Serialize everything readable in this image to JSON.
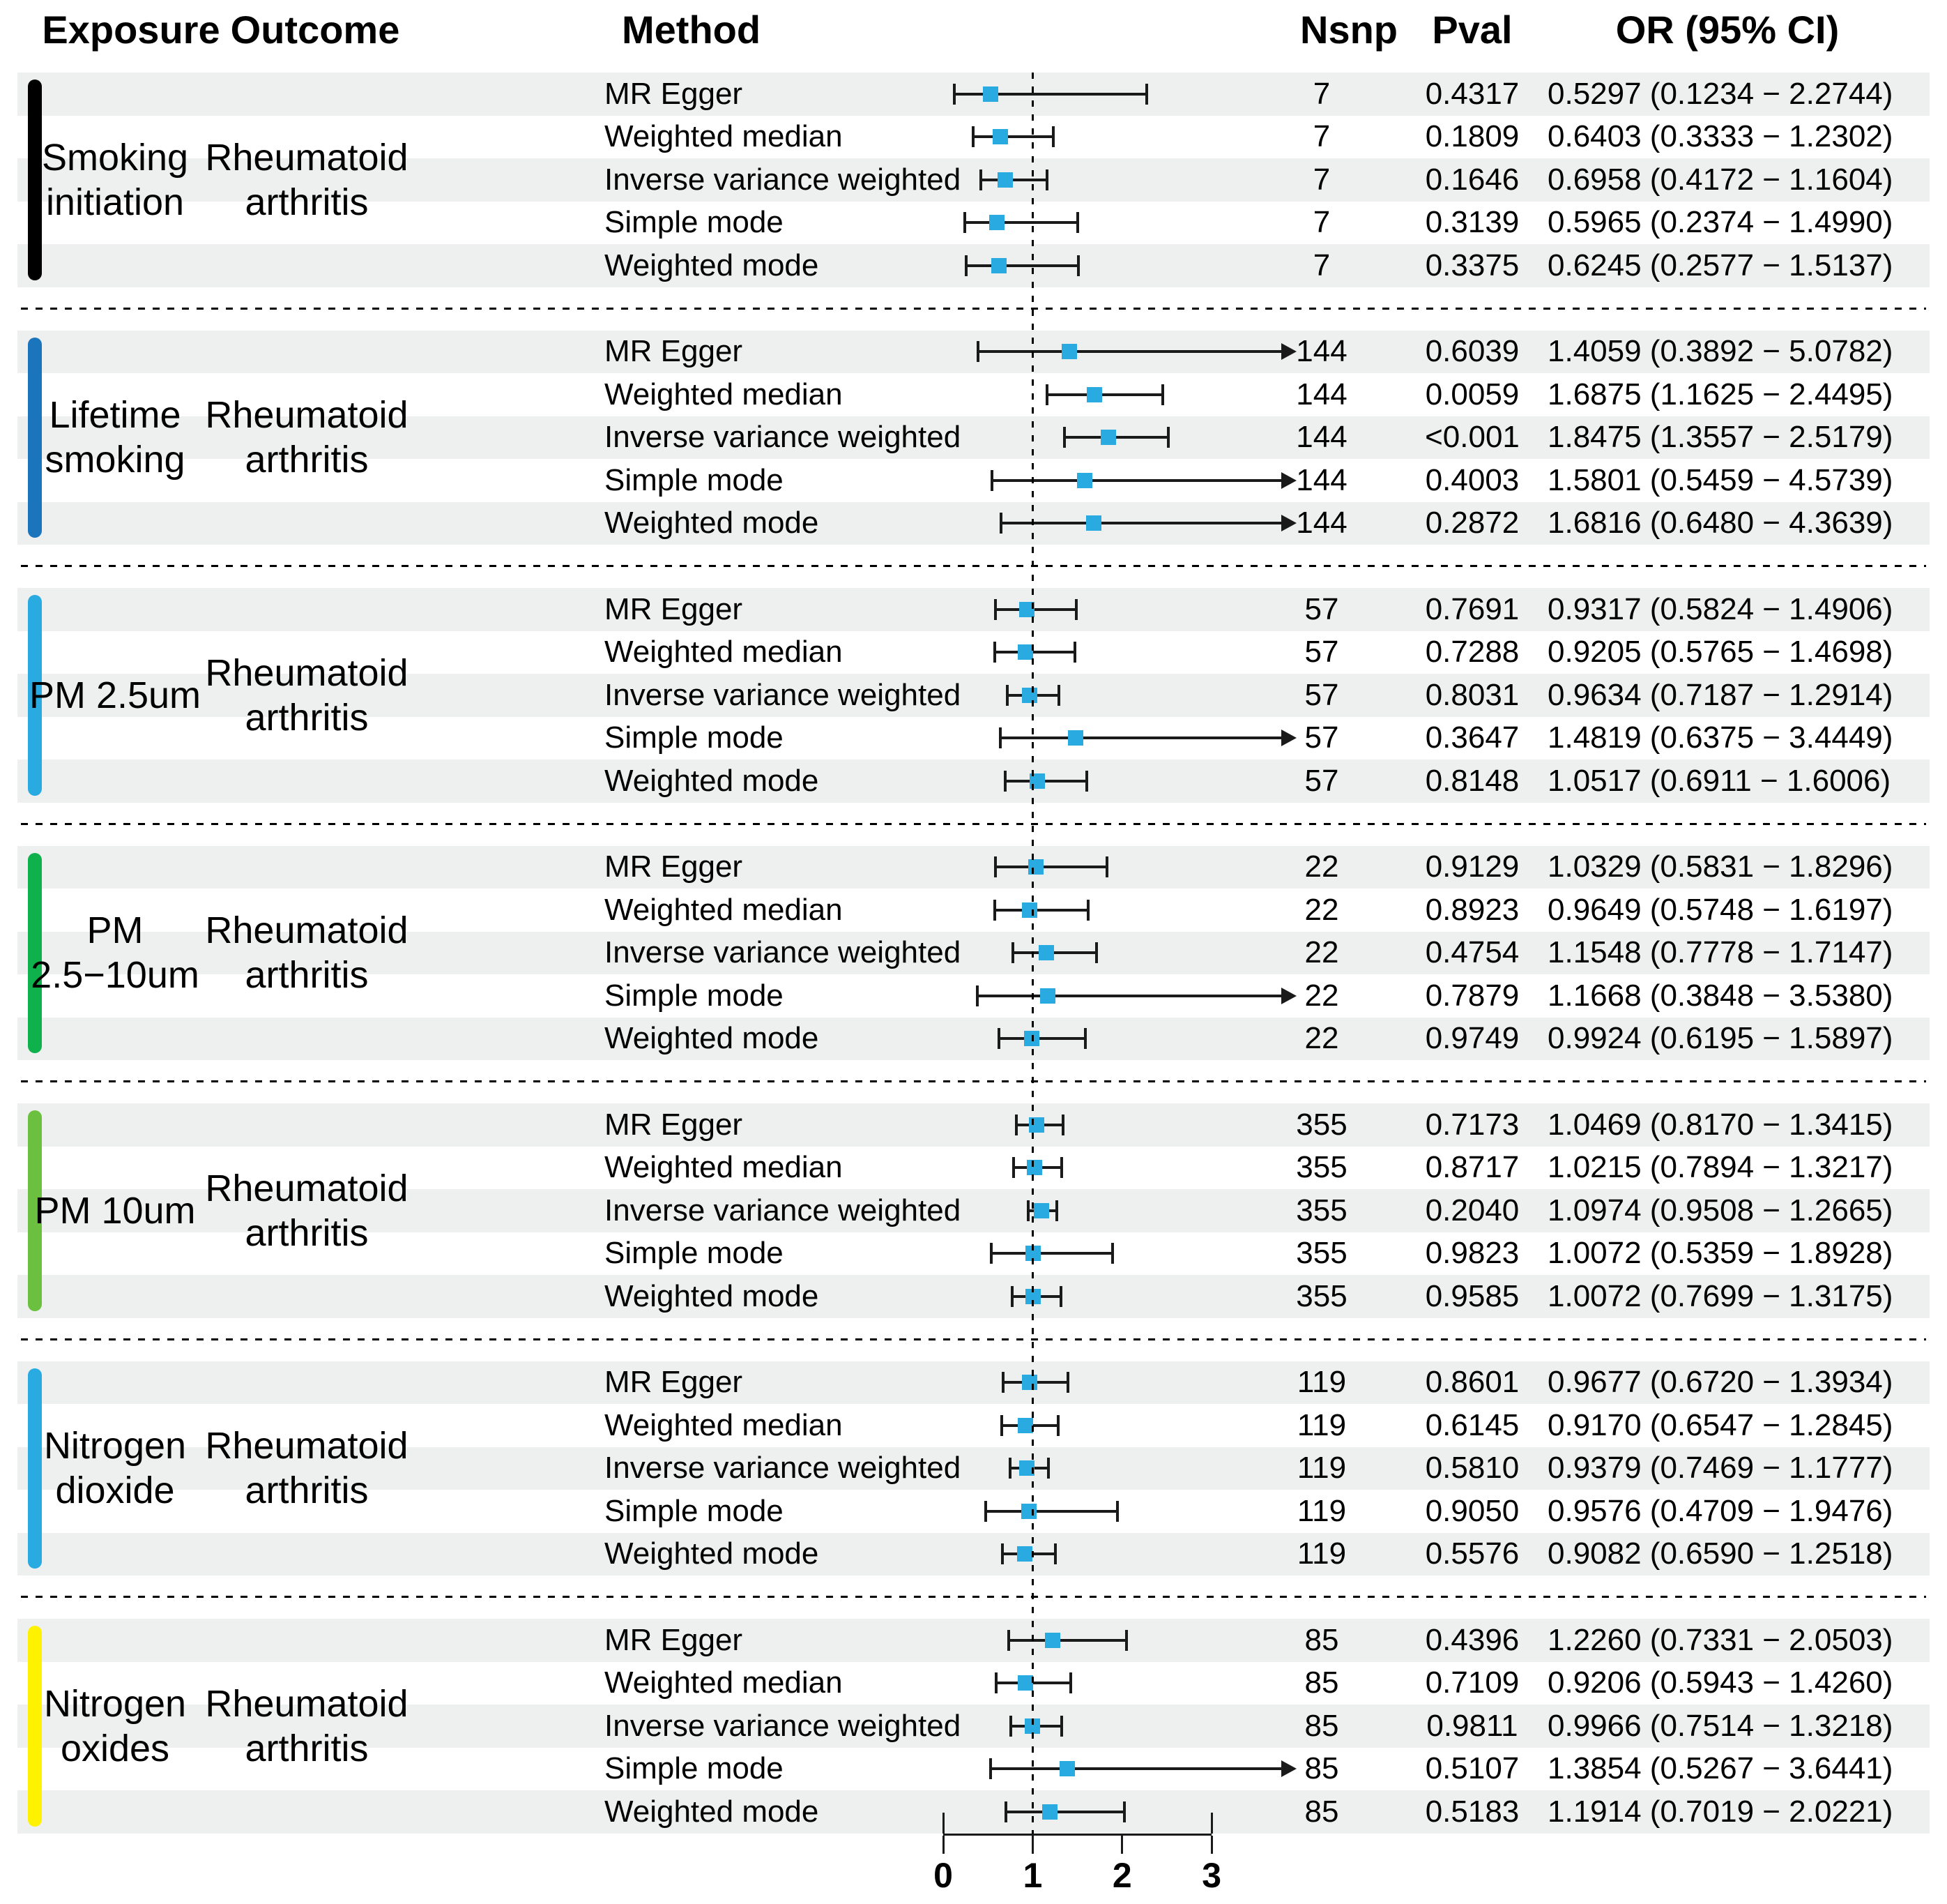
{
  "chart_data": {
    "type": "forest",
    "columns": {
      "exposure": "Exposure",
      "outcome": "Outcome",
      "method": "Method",
      "nsnp": "Nsnp",
      "pval": "Pval",
      "or_ci": "OR (95% CI)"
    },
    "x_axis": {
      "ticks": [
        "0",
        "1",
        "2",
        "3"
      ],
      "min": 0,
      "max": 3,
      "reference": 1
    },
    "colors": {
      "marker": "#29abe2",
      "band": "#eef0ef",
      "line": "#1a1a1a"
    },
    "groups": [
      {
        "exposure_lines": [
          "Smoking",
          "initiation"
        ],
        "outcome_lines": [
          "Rheumatoid",
          "arthritis"
        ],
        "bar_color": "#000000",
        "rows": [
          {
            "method": "MR Egger",
            "nsnp": "7",
            "pval": "0.4317",
            "or": 0.5297,
            "ci_low": 0.1234,
            "ci_high": 2.2744,
            "or_text": "0.5297 (0.1234 − 2.2744)",
            "clipped": false
          },
          {
            "method": "Weighted median",
            "nsnp": "7",
            "pval": "0.1809",
            "or": 0.6403,
            "ci_low": 0.3333,
            "ci_high": 1.2302,
            "or_text": "0.6403 (0.3333 − 1.2302)",
            "clipped": false
          },
          {
            "method": "Inverse variance weighted",
            "nsnp": "7",
            "pval": "0.1646",
            "or": 0.6958,
            "ci_low": 0.4172,
            "ci_high": 1.1604,
            "or_text": "0.6958 (0.4172 − 1.1604)",
            "clipped": false
          },
          {
            "method": "Simple mode",
            "nsnp": "7",
            "pval": "0.3139",
            "or": 0.5965,
            "ci_low": 0.2374,
            "ci_high": 1.499,
            "or_text": "0.5965 (0.2374 − 1.4990)",
            "clipped": false
          },
          {
            "method": "Weighted mode",
            "nsnp": "7",
            "pval": "0.3375",
            "or": 0.6245,
            "ci_low": 0.2577,
            "ci_high": 1.5137,
            "or_text": "0.6245 (0.2577 − 1.5137)",
            "clipped": false
          }
        ]
      },
      {
        "exposure_lines": [
          "Lifetime",
          "smoking"
        ],
        "outcome_lines": [
          "Rheumatoid",
          "arthritis"
        ],
        "bar_color": "#1b75bc",
        "rows": [
          {
            "method": "MR Egger",
            "nsnp": "144",
            "pval": "0.6039",
            "or": 1.4059,
            "ci_low": 0.3892,
            "ci_high": 5.0782,
            "or_text": "1.4059 (0.3892 − 5.0782)",
            "clipped": true
          },
          {
            "method": "Weighted median",
            "nsnp": "144",
            "pval": "0.0059",
            "or": 1.6875,
            "ci_low": 1.1625,
            "ci_high": 2.4495,
            "or_text": "1.6875 (1.1625 − 2.4495)",
            "clipped": false
          },
          {
            "method": "Inverse variance weighted",
            "nsnp": "144",
            "pval": "<0.001",
            "or": 1.8475,
            "ci_low": 1.3557,
            "ci_high": 2.5179,
            "or_text": "1.8475 (1.3557 − 2.5179)",
            "clipped": false
          },
          {
            "method": "Simple mode",
            "nsnp": "144",
            "pval": "0.4003",
            "or": 1.5801,
            "ci_low": 0.5459,
            "ci_high": 4.5739,
            "or_text": "1.5801 (0.5459 − 4.5739)",
            "clipped": true
          },
          {
            "method": "Weighted mode",
            "nsnp": "144",
            "pval": "0.2872",
            "or": 1.6816,
            "ci_low": 0.648,
            "ci_high": 4.3639,
            "or_text": "1.6816 (0.6480 − 4.3639)",
            "clipped": true
          }
        ]
      },
      {
        "exposure_lines": [
          "PM 2.5um"
        ],
        "outcome_lines": [
          "Rheumatoid",
          "arthritis"
        ],
        "bar_color": "#29abe2",
        "rows": [
          {
            "method": "MR Egger",
            "nsnp": "57",
            "pval": "0.7691",
            "or": 0.9317,
            "ci_low": 0.5824,
            "ci_high": 1.4906,
            "or_text": "0.9317 (0.5824 − 1.4906)",
            "clipped": false
          },
          {
            "method": "Weighted median",
            "nsnp": "57",
            "pval": "0.7288",
            "or": 0.9205,
            "ci_low": 0.5765,
            "ci_high": 1.4698,
            "or_text": "0.9205 (0.5765 − 1.4698)",
            "clipped": false
          },
          {
            "method": "Inverse variance weighted",
            "nsnp": "57",
            "pval": "0.8031",
            "or": 0.9634,
            "ci_low": 0.7187,
            "ci_high": 1.2914,
            "or_text": "0.9634 (0.7187 − 1.2914)",
            "clipped": false
          },
          {
            "method": "Simple mode",
            "nsnp": "57",
            "pval": "0.3647",
            "or": 1.4819,
            "ci_low": 0.6375,
            "ci_high": 3.4449,
            "or_text": "1.4819 (0.6375 − 3.4449)",
            "clipped": true
          },
          {
            "method": "Weighted mode",
            "nsnp": "57",
            "pval": "0.8148",
            "or": 1.0517,
            "ci_low": 0.6911,
            "ci_high": 1.6006,
            "or_text": "1.0517 (0.6911 − 1.6006)",
            "clipped": false
          }
        ]
      },
      {
        "exposure_lines": [
          "PM",
          "2.5−10um"
        ],
        "outcome_lines": [
          "Rheumatoid",
          "arthritis"
        ],
        "bar_color": "#0fb14c",
        "rows": [
          {
            "method": "MR Egger",
            "nsnp": "22",
            "pval": "0.9129",
            "or": 1.0329,
            "ci_low": 0.5831,
            "ci_high": 1.8296,
            "or_text": "1.0329 (0.5831 − 1.8296)",
            "clipped": false
          },
          {
            "method": "Weighted median",
            "nsnp": "22",
            "pval": "0.8923",
            "or": 0.9649,
            "ci_low": 0.5748,
            "ci_high": 1.6197,
            "or_text": "0.9649 (0.5748 − 1.6197)",
            "clipped": false
          },
          {
            "method": "Inverse variance weighted",
            "nsnp": "22",
            "pval": "0.4754",
            "or": 1.1548,
            "ci_low": 0.7778,
            "ci_high": 1.7147,
            "or_text": "1.1548 (0.7778 − 1.7147)",
            "clipped": false
          },
          {
            "method": "Simple mode",
            "nsnp": "22",
            "pval": "0.7879",
            "or": 1.1668,
            "ci_low": 0.3848,
            "ci_high": 3.538,
            "or_text": "1.1668 (0.3848 − 3.5380)",
            "clipped": true
          },
          {
            "method": "Weighted mode",
            "nsnp": "22",
            "pval": "0.9749",
            "or": 0.9924,
            "ci_low": 0.6195,
            "ci_high": 1.5897,
            "or_text": "0.9924 (0.6195 − 1.5897)",
            "clipped": false
          }
        ]
      },
      {
        "exposure_lines": [
          "PM 10um"
        ],
        "outcome_lines": [
          "Rheumatoid",
          "arthritis"
        ],
        "bar_color": "#6cc040",
        "rows": [
          {
            "method": "MR Egger",
            "nsnp": "355",
            "pval": "0.7173",
            "or": 1.0469,
            "ci_low": 0.817,
            "ci_high": 1.3415,
            "or_text": "1.0469 (0.8170 − 1.3415)",
            "clipped": false
          },
          {
            "method": "Weighted median",
            "nsnp": "355",
            "pval": "0.8717",
            "or": 1.0215,
            "ci_low": 0.7894,
            "ci_high": 1.3217,
            "or_text": "1.0215 (0.7894 − 1.3217)",
            "clipped": false
          },
          {
            "method": "Inverse variance weighted",
            "nsnp": "355",
            "pval": "0.2040",
            "or": 1.0974,
            "ci_low": 0.9508,
            "ci_high": 1.2665,
            "or_text": "1.0974 (0.9508 − 1.2665)",
            "clipped": false
          },
          {
            "method": "Simple mode",
            "nsnp": "355",
            "pval": "0.9823",
            "or": 1.0072,
            "ci_low": 0.5359,
            "ci_high": 1.8928,
            "or_text": "1.0072 (0.5359 − 1.8928)",
            "clipped": false
          },
          {
            "method": "Weighted mode",
            "nsnp": "355",
            "pval": "0.9585",
            "or": 1.0072,
            "ci_low": 0.7699,
            "ci_high": 1.3175,
            "or_text": "1.0072 (0.7699 − 1.3175)",
            "clipped": false
          }
        ]
      },
      {
        "exposure_lines": [
          "Nitrogen",
          "dioxide"
        ],
        "outcome_lines": [
          "Rheumatoid",
          "arthritis"
        ],
        "bar_color": "#29abe2",
        "rows": [
          {
            "method": "MR Egger",
            "nsnp": "119",
            "pval": "0.8601",
            "or": 0.9677,
            "ci_low": 0.672,
            "ci_high": 1.3934,
            "or_text": "0.9677 (0.6720 − 1.3934)",
            "clipped": false
          },
          {
            "method": "Weighted median",
            "nsnp": "119",
            "pval": "0.6145",
            "or": 0.917,
            "ci_low": 0.6547,
            "ci_high": 1.2845,
            "or_text": "0.9170 (0.6547 − 1.2845)",
            "clipped": false
          },
          {
            "method": "Inverse variance weighted",
            "nsnp": "119",
            "pval": "0.5810",
            "or": 0.9379,
            "ci_low": 0.7469,
            "ci_high": 1.1777,
            "or_text": "0.9379 (0.7469 − 1.1777)",
            "clipped": false
          },
          {
            "method": "Simple mode",
            "nsnp": "119",
            "pval": "0.9050",
            "or": 0.9576,
            "ci_low": 0.4709,
            "ci_high": 1.9476,
            "or_text": "0.9576 (0.4709 − 1.9476)",
            "clipped": false
          },
          {
            "method": "Weighted mode",
            "nsnp": "119",
            "pval": "0.5576",
            "or": 0.9082,
            "ci_low": 0.659,
            "ci_high": 1.2518,
            "or_text": "0.9082 (0.6590 − 1.2518)",
            "clipped": false
          }
        ]
      },
      {
        "exposure_lines": [
          "Nitrogen",
          "oxides"
        ],
        "outcome_lines": [
          "Rheumatoid",
          "arthritis"
        ],
        "bar_color": "#fff200",
        "rows": [
          {
            "method": "MR Egger",
            "nsnp": "85",
            "pval": "0.4396",
            "or": 1.226,
            "ci_low": 0.7331,
            "ci_high": 2.0503,
            "or_text": "1.2260 (0.7331 − 2.0503)",
            "clipped": false
          },
          {
            "method": "Weighted median",
            "nsnp": "85",
            "pval": "0.7109",
            "or": 0.9206,
            "ci_low": 0.5943,
            "ci_high": 1.426,
            "or_text": "0.9206 (0.5943 − 1.4260)",
            "clipped": false
          },
          {
            "method": "Inverse variance weighted",
            "nsnp": "85",
            "pval": "0.9811",
            "or": 0.9966,
            "ci_low": 0.7514,
            "ci_high": 1.3218,
            "or_text": "0.9966 (0.7514 − 1.3218)",
            "clipped": false
          },
          {
            "method": "Simple mode",
            "nsnp": "85",
            "pval": "0.5107",
            "or": 1.3854,
            "ci_low": 0.5267,
            "ci_high": 3.6441,
            "or_text": "1.3854 (0.5267 − 3.6441)",
            "clipped": true
          },
          {
            "method": "Weighted mode",
            "nsnp": "85",
            "pval": "0.5183",
            "or": 1.1914,
            "ci_low": 0.7019,
            "ci_high": 2.0221,
            "or_text": "1.1914 (0.7019 − 2.0221)",
            "clipped": false
          }
        ]
      }
    ]
  }
}
